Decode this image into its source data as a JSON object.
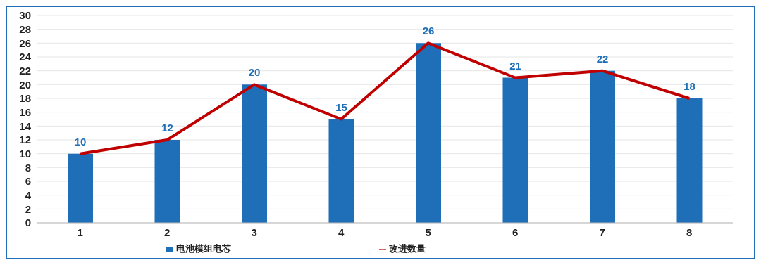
{
  "chart_data": {
    "type": "bar",
    "categories": [
      "1",
      "2",
      "3",
      "4",
      "5",
      "6",
      "7",
      "8"
    ],
    "series": [
      {
        "name": "电池模组电芯",
        "color": "#1f6fb8",
        "values": [
          10,
          12,
          20,
          15,
          26,
          21,
          22,
          18
        ],
        "value_labels": [
          "10",
          "12",
          "20",
          "15",
          "26",
          "21",
          "22",
          "18"
        ]
      },
      {
        "name": "改进数量",
        "type": "line",
        "color": "#c00000",
        "values": [
          10,
          12,
          20,
          15,
          26,
          21,
          22,
          18
        ]
      }
    ],
    "ylim": [
      0,
      30
    ],
    "yticks": [
      0,
      2,
      4,
      6,
      8,
      10,
      12,
      14,
      16,
      18,
      20,
      22,
      24,
      26,
      28,
      30
    ],
    "grid": "y",
    "legend": "bottom",
    "marker": "none",
    "line_style": "solid"
  }
}
